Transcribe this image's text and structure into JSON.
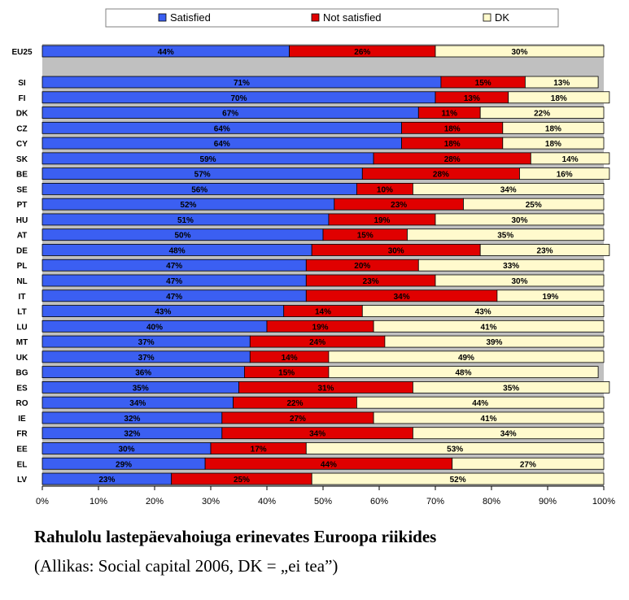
{
  "chart_data": {
    "type": "bar",
    "orientation": "horizontal",
    "stacked": true,
    "legend_position": "top",
    "categories": [
      "EU25",
      "SI",
      "FI",
      "DK",
      "CZ",
      "CY",
      "SK",
      "BE",
      "SE",
      "PT",
      "HU",
      "AT",
      "DE",
      "PL",
      "NL",
      "IT",
      "LT",
      "LU",
      "MT",
      "UK",
      "BG",
      "ES",
      "RO",
      "IE",
      "FR",
      "EE",
      "EL",
      "LV"
    ],
    "series": [
      {
        "name": "Satisfied",
        "color": "#3b5ff2",
        "values": [
          44,
          71,
          70,
          67,
          64,
          64,
          59,
          57,
          56,
          52,
          51,
          50,
          48,
          47,
          47,
          47,
          43,
          40,
          37,
          37,
          36,
          35,
          34,
          32,
          32,
          30,
          29,
          23
        ]
      },
      {
        "name": "Not satisfied",
        "color": "#e00000",
        "values": [
          26,
          15,
          13,
          11,
          18,
          18,
          28,
          28,
          10,
          23,
          19,
          15,
          30,
          20,
          23,
          34,
          14,
          19,
          24,
          14,
          15,
          31,
          22,
          27,
          34,
          17,
          44,
          25
        ]
      },
      {
        "name": "DK",
        "color": "#fffacd",
        "values": [
          30,
          13,
          18,
          22,
          18,
          18,
          14,
          16,
          34,
          25,
          30,
          35,
          23,
          33,
          30,
          19,
          43,
          41,
          39,
          49,
          48,
          35,
          44,
          41,
          34,
          53,
          27,
          52
        ]
      }
    ],
    "xlim": [
      0,
      100
    ],
    "xticks": [
      "0%",
      "10%",
      "20%",
      "30%",
      "40%",
      "50%",
      "60%",
      "70%",
      "80%",
      "90%",
      "100%"
    ],
    "grid": false
  },
  "caption": {
    "title": "Rahulolu lastepäevahoiuga erinevates Euroopa riikides",
    "subtitle": "(Allikas: Social capital 2006, DK = „ei tea”)"
  }
}
